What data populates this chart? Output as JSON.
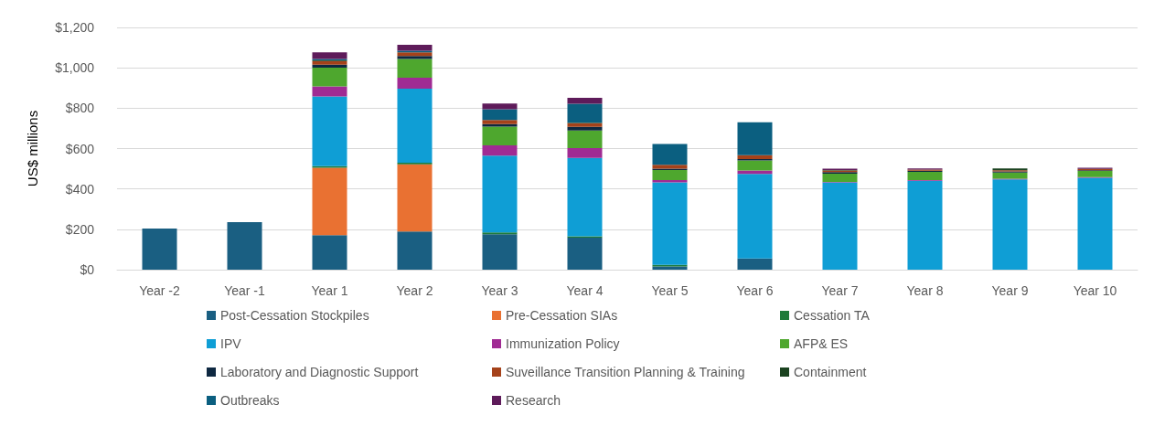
{
  "chart_data": {
    "type": "bar",
    "stacked": true,
    "ylabel": "US$ millions",
    "categories": [
      "Year -2",
      "Year -1",
      "Year 1",
      "Year 2",
      "Year 3",
      "Year 4",
      "Year 5",
      "Year 6",
      "Year 7",
      "Year 8",
      "Year 9",
      "Year 10"
    ],
    "series": [
      {
        "name": "Post-Cessation Stockpiles",
        "color": "#1a5f82",
        "values": [
          204,
          236,
          171,
          189,
          175,
          158,
          16,
          55,
          0,
          0,
          0,
          0
        ]
      },
      {
        "name": "Pre-Cessation SIAs",
        "color": "#e97132",
        "values": [
          0,
          0,
          334,
          333,
          0,
          0,
          0,
          0,
          0,
          0,
          0,
          0
        ]
      },
      {
        "name": "Cessation TA",
        "color": "#1e7a3a",
        "values": [
          0,
          0,
          8,
          8,
          10,
          7,
          8,
          0,
          0,
          0,
          0,
          0
        ]
      },
      {
        "name": "IPV",
        "color": "#0f9ed5",
        "values": [
          0,
          0,
          345,
          367,
          380,
          389,
          408,
          419,
          432,
          440,
          447,
          455
        ]
      },
      {
        "name": "Immunization Policy",
        "color": "#a02b93",
        "values": [
          0,
          0,
          50,
          54,
          51,
          48,
          12,
          17,
          3,
          4,
          4,
          4
        ]
      },
      {
        "name": "AFP& ES",
        "color": "#4ea72e",
        "values": [
          0,
          0,
          93,
          93,
          93,
          88,
          50,
          50,
          40,
          40,
          30,
          30
        ]
      },
      {
        "name": "Laboratory and Diagnostic Support",
        "color": "#0e2841",
        "values": [
          0,
          0,
          14,
          14,
          12,
          17,
          6,
          7,
          8,
          6,
          6,
          4
        ]
      },
      {
        "name": "Suveillance Transition Planning & Training",
        "color": "#a5421a",
        "values": [
          0,
          0,
          19,
          19,
          20,
          19,
          20,
          19,
          8,
          6,
          6,
          6
        ]
      },
      {
        "name": "Containment",
        "color": "#1b4320",
        "values": [
          0,
          0,
          3,
          null,
          null,
          2,
          0,
          0,
          3,
          0,
          8,
          0
        ]
      },
      {
        "name": "Outbreaks",
        "color": "#0b5f80",
        "values": [
          0,
          0,
          7,
          8,
          54,
          94,
          103,
          163,
          0,
          0,
          0,
          0
        ]
      },
      {
        "name": "Research",
        "color": "#5e1b5a",
        "values": [
          0,
          0,
          33,
          29,
          28,
          29,
          0,
          0,
          6,
          6,
          0,
          6
        ]
      }
    ],
    "ylim": [
      0,
      1200
    ],
    "yticks": [
      {
        "value": 0,
        "label": "$0"
      },
      {
        "value": 200,
        "label": "$200"
      },
      {
        "value": 400,
        "label": "$400"
      },
      {
        "value": 600,
        "label": "$600"
      },
      {
        "value": 800,
        "label": "$800"
      },
      {
        "value": 1000,
        "label": "$1,000"
      },
      {
        "value": 1200,
        "label": "$1,200"
      }
    ],
    "grid": "y",
    "legend": "bottom"
  }
}
